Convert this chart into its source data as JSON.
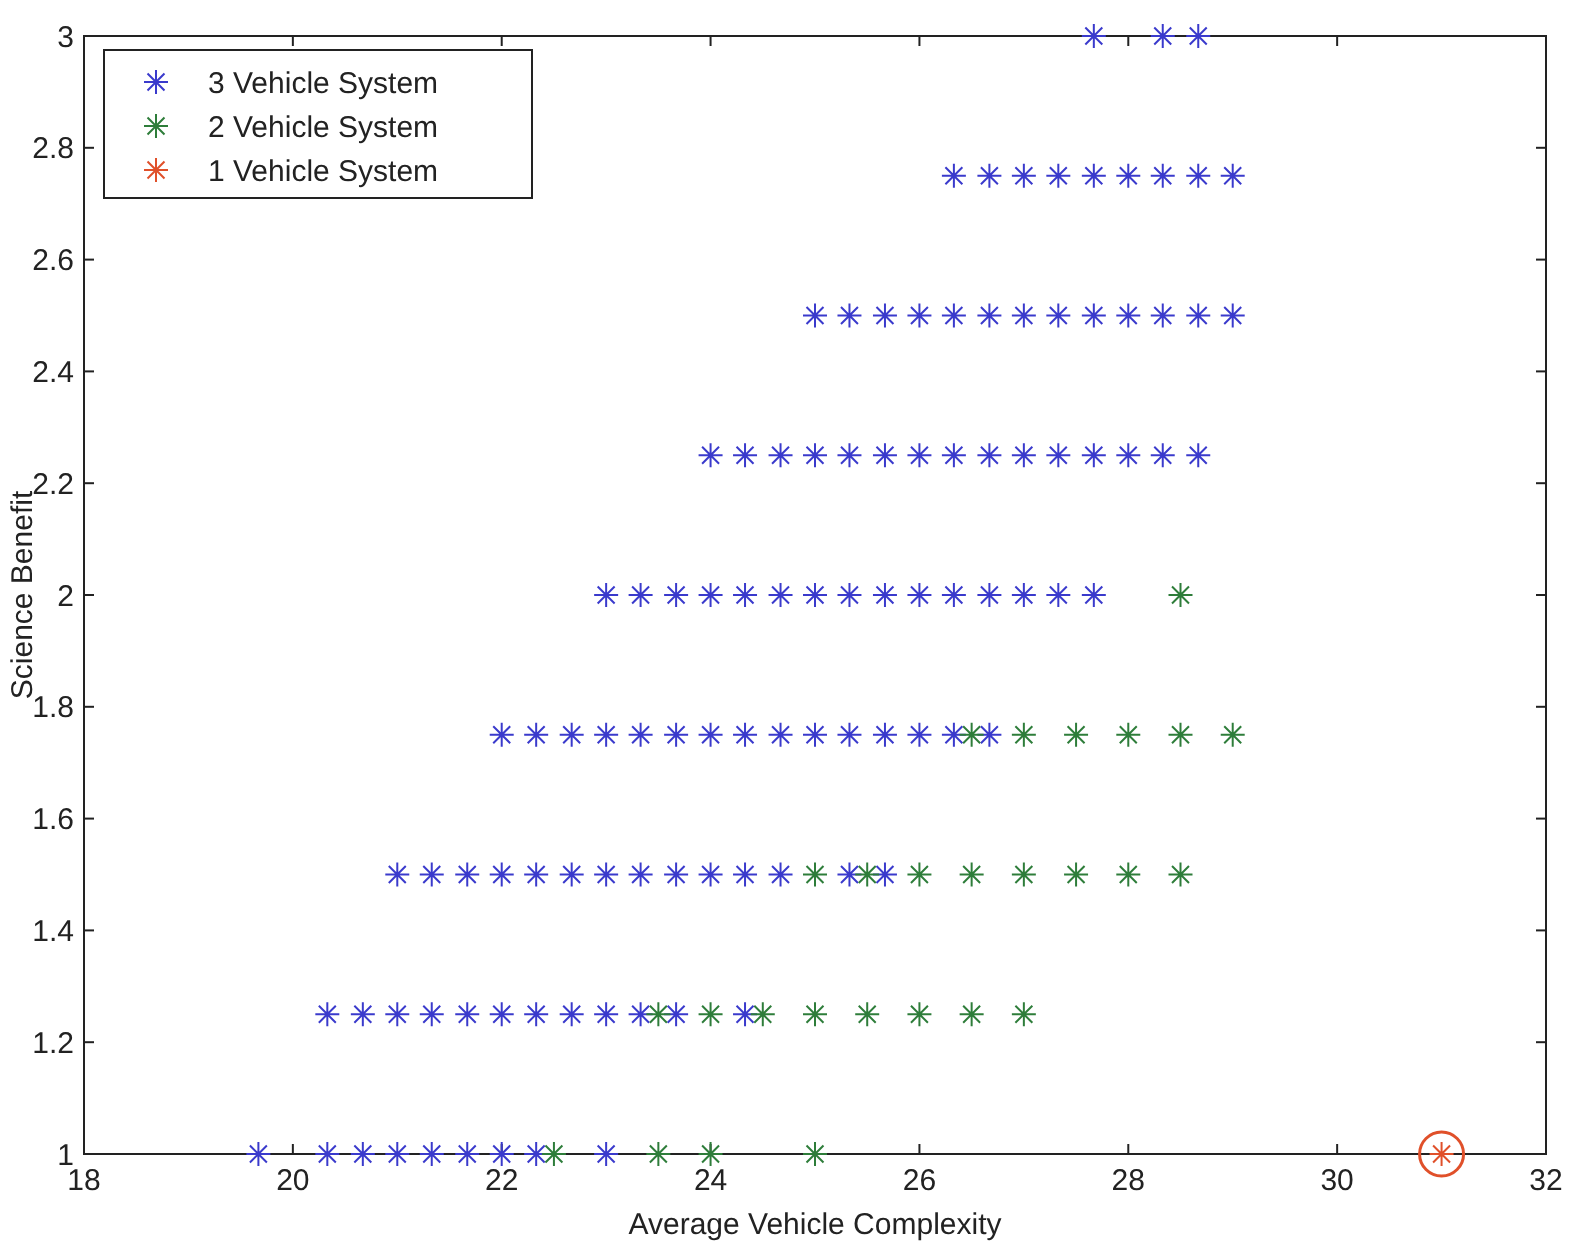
{
  "chart_data": {
    "type": "scatter",
    "xlabel": "Average Vehicle Complexity",
    "ylabel": "Science Benefit",
    "xlim": [
      18,
      32
    ],
    "xticks": [
      18,
      20,
      22,
      24,
      26,
      28,
      30,
      32
    ],
    "ylim": [
      1,
      3
    ],
    "yticks": [
      1,
      1.2,
      1.4,
      1.6,
      1.8,
      2,
      2.2,
      2.4,
      2.6,
      2.8,
      3
    ],
    "grid": false,
    "legend": "top left",
    "marker": "cross",
    "series": [
      {
        "name": "3 Vehicle System",
        "color": "#3a3acc",
        "x": [
          27.67,
          28.33,
          28.67,
          26.33,
          26.67,
          27,
          27.33,
          27.67,
          28,
          28.33,
          28.67,
          29,
          25,
          25.33,
          25.67,
          26,
          26.33,
          26.67,
          27,
          27.33,
          27.67,
          28,
          28.33,
          28.67,
          29,
          24,
          24.33,
          24.67,
          25,
          25.33,
          25.67,
          26,
          26.33,
          26.67,
          27,
          27.33,
          27.67,
          28,
          28.33,
          28.67,
          23,
          23.33,
          23.67,
          24,
          24.33,
          24.67,
          25,
          25.33,
          25.67,
          26,
          26.33,
          26.67,
          27,
          27.33,
          27.67,
          22,
          22.33,
          22.67,
          23,
          23.33,
          23.67,
          24,
          24.33,
          24.67,
          25,
          25.33,
          25.67,
          26,
          26.33,
          26.67,
          21,
          21.33,
          21.67,
          22,
          22.33,
          22.67,
          23,
          23.33,
          23.67,
          24,
          24.33,
          24.67,
          25.33,
          25.67,
          20.33,
          20.67,
          21,
          21.33,
          21.67,
          22,
          22.33,
          22.67,
          23,
          23.33,
          23.67,
          24.33,
          19.67,
          20.33,
          20.67,
          21,
          21.33,
          21.67,
          22,
          22.33,
          23
        ],
        "values": [
          3,
          3,
          3,
          2.75,
          2.75,
          2.75,
          2.75,
          2.75,
          2.75,
          2.75,
          2.75,
          2.75,
          2.5,
          2.5,
          2.5,
          2.5,
          2.5,
          2.5,
          2.5,
          2.5,
          2.5,
          2.5,
          2.5,
          2.5,
          2.5,
          2.25,
          2.25,
          2.25,
          2.25,
          2.25,
          2.25,
          2.25,
          2.25,
          2.25,
          2.25,
          2.25,
          2.25,
          2.25,
          2.25,
          2.25,
          2,
          2,
          2,
          2,
          2,
          2,
          2,
          2,
          2,
          2,
          2,
          2,
          2,
          2,
          2,
          1.75,
          1.75,
          1.75,
          1.75,
          1.75,
          1.75,
          1.75,
          1.75,
          1.75,
          1.75,
          1.75,
          1.75,
          1.75,
          1.75,
          1.75,
          1.5,
          1.5,
          1.5,
          1.5,
          1.5,
          1.5,
          1.5,
          1.5,
          1.5,
          1.5,
          1.5,
          1.5,
          1.5,
          1.5,
          1.25,
          1.25,
          1.25,
          1.25,
          1.25,
          1.25,
          1.25,
          1.25,
          1.25,
          1.25,
          1.25,
          1.25,
          1,
          1,
          1,
          1,
          1,
          1,
          1,
          1,
          1
        ]
      },
      {
        "name": "2 Vehicle System",
        "color": "#2e7d3a",
        "x": [
          28.5,
          26.5,
          27,
          27.5,
          28,
          28.5,
          29,
          25,
          25.5,
          26,
          26.5,
          27,
          27.5,
          28,
          28.5,
          23.5,
          24,
          24.5,
          25,
          25.5,
          26,
          26.5,
          27,
          22.5,
          23.5,
          24,
          25
        ],
        "values": [
          2,
          1.75,
          1.75,
          1.75,
          1.75,
          1.75,
          1.75,
          1.5,
          1.5,
          1.5,
          1.5,
          1.5,
          1.5,
          1.5,
          1.5,
          1.25,
          1.25,
          1.25,
          1.25,
          1.25,
          1.25,
          1.25,
          1.25,
          1,
          1,
          1,
          1
        ]
      },
      {
        "name": "1 Vehicle System",
        "color": "#e0502a",
        "x": [
          31
        ],
        "values": [
          1
        ]
      }
    ]
  }
}
